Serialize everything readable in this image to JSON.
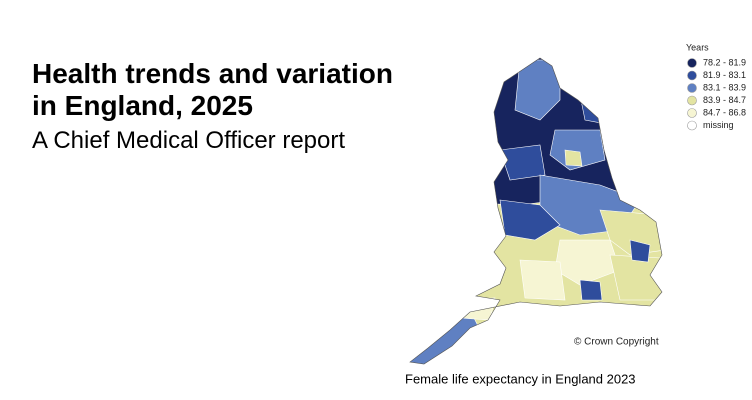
{
  "title": [
    "Health trends and variation",
    "in England, 2025"
  ],
  "subtitle": "A Chief Medical Officer report",
  "map": {
    "legend_title": "Years",
    "legend": [
      {
        "label": "78.2 - 81.9",
        "color": "#17245e"
      },
      {
        "label": "81.9 - 83.1",
        "color": "#2f4d9c"
      },
      {
        "label": "83.1 - 83.9",
        "color": "#5f80c2"
      },
      {
        "label": "83.9 - 84.7",
        "color": "#e3e4a2"
      },
      {
        "label": "84.7 - 86.8",
        "color": "#f6f5d3"
      },
      {
        "label": "missing",
        "color": "#ffffff"
      }
    ],
    "copyright": "© Crown Copyright",
    "caption": "Female life expectancy in England 2023"
  }
}
